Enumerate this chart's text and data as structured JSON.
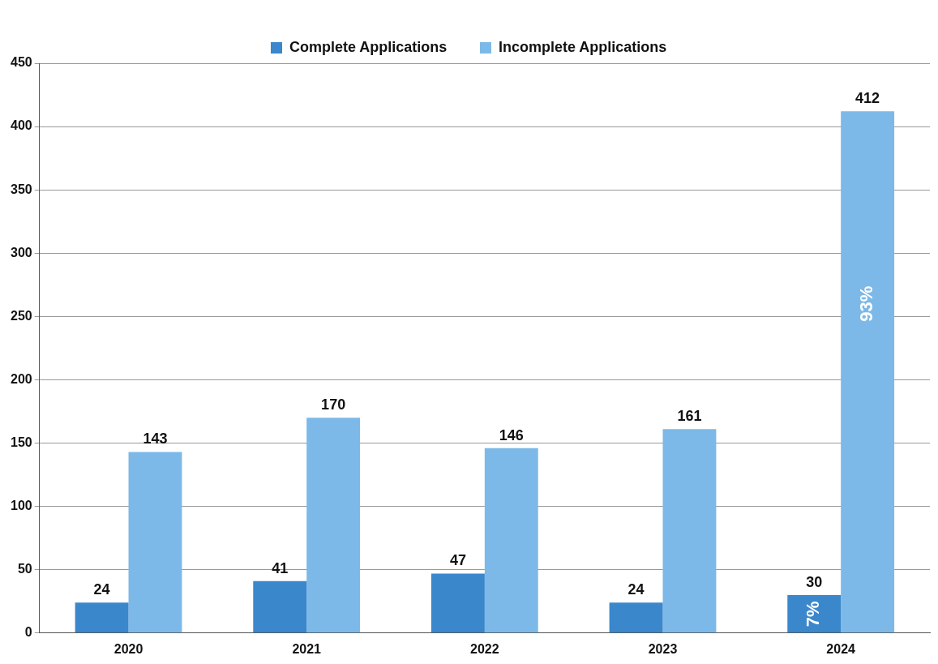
{
  "chart_data": {
    "type": "bar",
    "categories": [
      "2020",
      "2021",
      "2022",
      "2023",
      "2024"
    ],
    "series": [
      {
        "name": "Complete Applications",
        "color": "#3a87cc",
        "values": [
          24,
          41,
          47,
          24,
          30
        ]
      },
      {
        "name": "Incomplete Applications",
        "color": "#7cb9e8",
        "values": [
          143,
          170,
          146,
          161,
          412
        ]
      }
    ],
    "ylim": [
      0,
      450
    ],
    "yticks": [
      0,
      50,
      100,
      150,
      200,
      250,
      300,
      350,
      400,
      450
    ],
    "grid": "y",
    "legend": "top",
    "data_labels": true,
    "annotations": [
      {
        "text": "7%",
        "x": "2024",
        "y": 15
      },
      {
        "text": "93%",
        "x": "2024",
        "y": 260
      }
    ]
  }
}
